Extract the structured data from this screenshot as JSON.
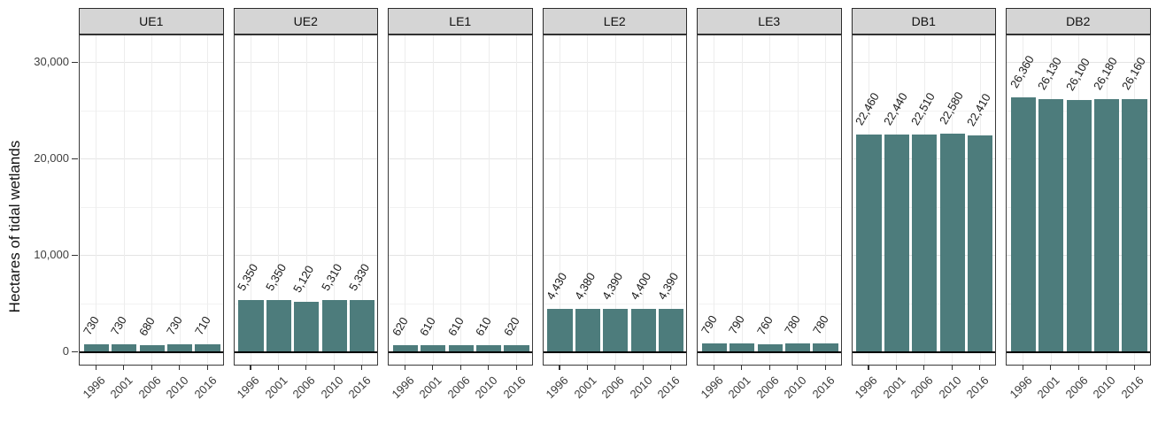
{
  "chart_data": {
    "type": "bar",
    "title": "",
    "ylabel": "Hectares of tidal wetlands",
    "xlabel": "",
    "categories": [
      "1996",
      "2001",
      "2006",
      "2010",
      "2016"
    ],
    "y_ticks": [
      {
        "value": 0,
        "label": "0"
      },
      {
        "value": 10000,
        "label": "10,000"
      },
      {
        "value": 20000,
        "label": "20,000"
      },
      {
        "value": 30000,
        "label": "30,000"
      }
    ],
    "y_minor_ticks": [
      5000,
      15000,
      25000
    ],
    "ylim": [
      -1500,
      32850
    ],
    "grid": true,
    "legend_position": "none",
    "colors": {
      "bar_fill": "#4d7c7c",
      "strip_bg": "#d5d5d5",
      "panel_border": "#3a3a3a",
      "grid_major": "#e4e4e4",
      "grid_minor": "#f2f2f2",
      "axis_text": "#404040",
      "zero_line": "#000000"
    },
    "panels": [
      {
        "label": "UE1",
        "values": [
          730,
          730,
          680,
          730,
          710
        ],
        "value_labels": [
          "730",
          "730",
          "680",
          "730",
          "710"
        ]
      },
      {
        "label": "UE2",
        "values": [
          5350,
          5350,
          5120,
          5310,
          5330
        ],
        "value_labels": [
          "5,350",
          "5,350",
          "5,120",
          "5,310",
          "5,330"
        ]
      },
      {
        "label": "LE1",
        "values": [
          620,
          610,
          610,
          610,
          620
        ],
        "value_labels": [
          "620",
          "610",
          "610",
          "610",
          "620"
        ]
      },
      {
        "label": "LE2",
        "values": [
          4430,
          4380,
          4390,
          4400,
          4390
        ],
        "value_labels": [
          "4,430",
          "4,380",
          "4,390",
          "4,400",
          "4,390"
        ]
      },
      {
        "label": "LE3",
        "values": [
          790,
          790,
          760,
          780,
          780
        ],
        "value_labels": [
          "790",
          "790",
          "760",
          "780",
          "780"
        ]
      },
      {
        "label": "DB1",
        "values": [
          22460,
          22440,
          22510,
          22580,
          22410
        ],
        "value_labels": [
          "22,460",
          "22,440",
          "22,510",
          "22,580",
          "22,410"
        ]
      },
      {
        "label": "DB2",
        "values": [
          26360,
          26130,
          26100,
          26180,
          26160
        ],
        "value_labels": [
          "26,360",
          "26,130",
          "26,100",
          "26,180",
          "26,160"
        ]
      }
    ]
  }
}
